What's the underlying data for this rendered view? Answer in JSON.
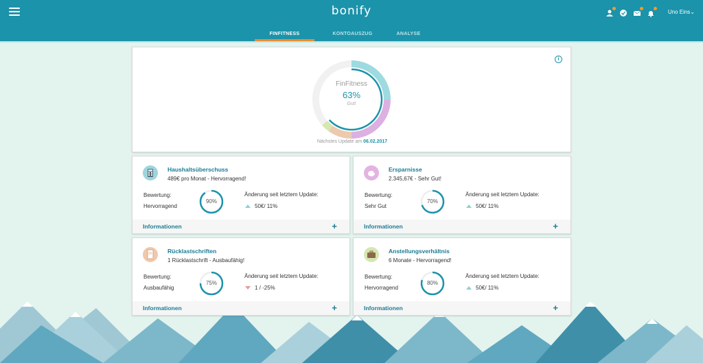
{
  "header": {
    "logo": "bonify",
    "user_name": "Uno Eins",
    "tabs": [
      "FINFITNESS",
      "KONTOAUSZUG",
      "ANALYSE"
    ],
    "icons": [
      "user-add-icon",
      "check-circle-icon",
      "mail-icon",
      "bell-icon"
    ],
    "accent": "#1b93aa",
    "tab_accent": "#f08a2c"
  },
  "finfitness": {
    "title": "FinFitness",
    "percent": "63%",
    "percent_value": 63,
    "status": "Gut!",
    "next_update_prefix": "Nächstes Update am",
    "next_update_date": "06.02.2017",
    "segment_colors": [
      "#9ddbe0",
      "#dcb0e0",
      "#edc9ad",
      "#d5e8b0"
    ],
    "ring_color": "#1b93aa"
  },
  "cards": [
    {
      "title": "Haushaltsüberschuss",
      "desc": "489€ pro Monat - Hervorragend!",
      "bewertung_label": "Bewertung:",
      "bewertung": "Hervorragend",
      "ring_text": "90%",
      "ring_value": 90,
      "change_label": "Änderung seit letztem Update:",
      "change": "50€/ 11%",
      "change_dir": "up",
      "footer": "Informationen",
      "icon": "calculator-icon",
      "icon_color": "#9dd5dd"
    },
    {
      "title": "Ersparnisse",
      "desc": "2.345,67€ - Sehr Gut!",
      "bewertung_label": "Bewertung:",
      "bewertung": "Sehr Gut",
      "ring_text": "70%",
      "ring_value": 70,
      "change_label": "Änderung seit letztem Update:",
      "change": "50€/ 11%",
      "change_dir": "up",
      "footer": "Informationen",
      "icon": "piggy-bank-icon",
      "icon_color": "#e3b3e2"
    },
    {
      "title": "Rücklastschriften",
      "desc": "1 Rücklastschrift - Ausbaufähig!",
      "bewertung_label": "Bewertung:",
      "bewertung": "Ausbaufähig",
      "ring_text": "75%",
      "ring_value": 75,
      "change_label": "Änderung seit letztem Update:",
      "change": "1 / -25%",
      "change_dir": "down",
      "footer": "Informationen",
      "icon": "document-icon",
      "icon_color": "#f0c8ab"
    },
    {
      "title": "Anstellungsverhältnis",
      "desc": "6 Monate - Hervorragend!",
      "bewertung_label": "Bewertung:",
      "bewertung": "Hervorragend",
      "ring_text": "80%",
      "ring_value": 80,
      "change_label": "Änderung seit letztem Update:",
      "change": "50€/ 11%",
      "change_dir": "up",
      "footer": "Informationen",
      "icon": "briefcase-icon",
      "icon_color": "#d6e6b2"
    }
  ]
}
